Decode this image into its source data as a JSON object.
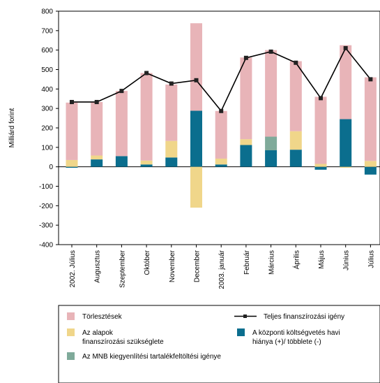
{
  "chart_data": {
    "type": "bar",
    "stacked": true,
    "title": "",
    "ylabel": "Milliárd forint",
    "xlabel": "",
    "ylim": [
      -400,
      800
    ],
    "yticks": [
      800,
      700,
      600,
      500,
      400,
      300,
      200,
      100,
      0,
      -100,
      -200,
      -300,
      -400
    ],
    "grid": false,
    "legend_position": "bottom",
    "categories": [
      "2002. Július",
      "Augusztus",
      "Szeptember",
      "Október",
      "November",
      "December",
      "2003. január",
      "Február",
      "Március",
      "Április",
      "Május",
      "Június",
      "Július"
    ],
    "series": [
      {
        "name": "Törlesztések",
        "kind": "bar",
        "color": "#e8b4b8",
        "values": [
          295,
          275,
          335,
          450,
          290,
          450,
          245,
          420,
          445,
          360,
          345,
          380,
          430
        ]
      },
      {
        "name": "Az alapok finanszírozási szükséglete",
        "kind": "bar",
        "color": "#f0d68a",
        "values": [
          35,
          20,
          0,
          20,
          85,
          -210,
          30,
          30,
          0,
          95,
          15,
          -5,
          30
        ]
      },
      {
        "name": "Az MNB kiegyenlítési tartalékfeltöltési igénye",
        "kind": "bar",
        "color": "#7faa9a",
        "values": [
          0,
          0,
          0,
          0,
          0,
          0,
          0,
          0,
          70,
          0,
          0,
          0,
          0
        ]
      },
      {
        "name": "A központi költségvetés havi hiánya (+)/ többlete (-)",
        "kind": "bar",
        "color": "#0b6e8e",
        "values": [
          -5,
          38,
          55,
          12,
          48,
          288,
          12,
          112,
          85,
          88,
          -15,
          245,
          -40
        ]
      },
      {
        "name": "Teljes finanszírozási igény",
        "kind": "line",
        "color": "#000000",
        "values": [
          333,
          333,
          390,
          482,
          428,
          445,
          287,
          560,
          592,
          535,
          353,
          610,
          450
        ]
      }
    ]
  },
  "legend": {
    "items": [
      {
        "label": "Törlesztések",
        "color": "#e8b4b8",
        "kind": "swatch"
      },
      {
        "label": "Teljes finanszírozási igény",
        "color": "#000000",
        "kind": "line"
      },
      {
        "label": "Az alapok",
        "label2": "finanszírozási szükséglete",
        "color": "#f0d68a",
        "kind": "swatch"
      },
      {
        "label": "A központi költségvetés havi",
        "label2": "hiánya (+)/ többlete (-)",
        "color": "#0b6e8e",
        "kind": "swatch"
      },
      {
        "label": "Az MNB kiegyenlítési tartalékfeltöltési igénye",
        "color": "#7faa9a",
        "kind": "swatch"
      }
    ]
  }
}
